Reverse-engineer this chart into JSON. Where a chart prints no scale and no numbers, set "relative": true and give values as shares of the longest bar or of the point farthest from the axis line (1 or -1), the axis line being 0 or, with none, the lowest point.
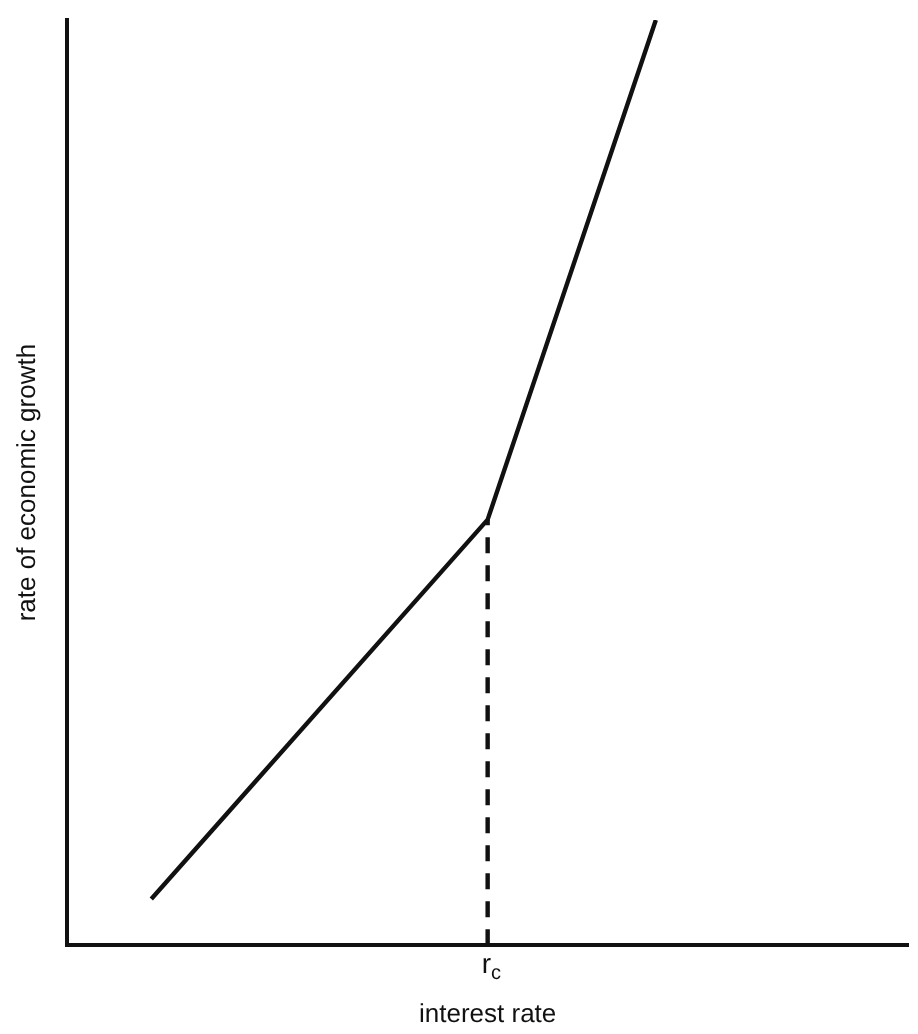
{
  "chart_data": {
    "type": "line",
    "relative": true,
    "xlabel": "interest rate",
    "ylabel": "rate of economic growth",
    "grid": false,
    "legend": false,
    "marker": "none",
    "line_style": "solid",
    "categories": [
      null,
      null,
      null,
      null,
      null,
      null,
      null,
      null,
      null,
      null,
      null,
      null,
      null,
      null,
      null,
      null,
      null,
      null,
      null,
      null,
      null
    ],
    "series": [
      {
        "color": "#111111",
        "values": [
          null,
          null,
          0.05,
          null,
          null,
          null,
          null,
          null,
          null,
          null,
          0.46,
          null,
          null,
          null,
          1,
          null,
          null,
          null,
          null,
          null,
          null
        ]
      }
    ],
    "annotations": [
      "r$_{c}$"
    ]
  }
}
